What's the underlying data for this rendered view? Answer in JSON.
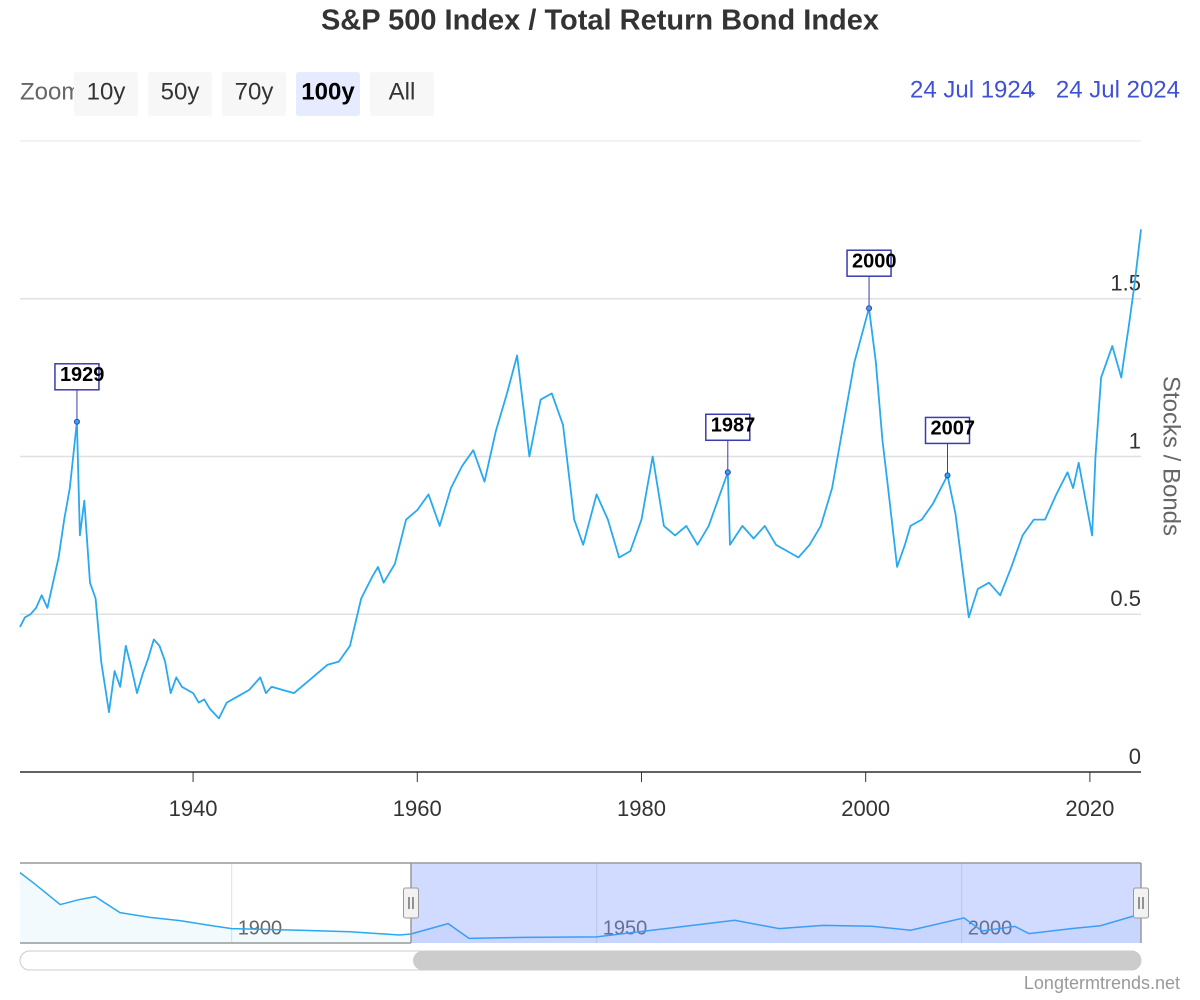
{
  "range_selector": {
    "label": "Zoom",
    "buttons": [
      "10y",
      "50y",
      "70y",
      "100y",
      "All"
    ],
    "selected": 3,
    "from": "24 Jul 1924",
    "separator": "→",
    "to": "24 Jul 2024"
  },
  "credit": "Longtermtrends.net",
  "chart_data": [
    {
      "type": "line",
      "title": "S&P 500 Index / Total Return Bond Index",
      "y_axis_title": "Stocks / Bonds",
      "color": "#29a9f0",
      "x": [
        1924.56,
        1925,
        1925.5,
        1926,
        1926.5,
        1927,
        1927.5,
        1928,
        1928.5,
        1929,
        1929.64,
        1929.9,
        1930.3,
        1930.8,
        1931.3,
        1931.8,
        1932.5,
        1933,
        1933.5,
        1934,
        1934.5,
        1935,
        1935.5,
        1936,
        1936.5,
        1937,
        1937.5,
        1938,
        1938.5,
        1939,
        1939.5,
        1940,
        1940.5,
        1941,
        1941.5,
        1942.3,
        1943,
        1944,
        1945,
        1946,
        1946.5,
        1947,
        1948,
        1949,
        1950,
        1951,
        1952,
        1953,
        1954,
        1955,
        1956,
        1956.5,
        1957,
        1958,
        1959,
        1960,
        1961,
        1962,
        1963,
        1964,
        1965,
        1966,
        1967,
        1968,
        1968.9,
        1970,
        1971,
        1972,
        1973,
        1974,
        1974.8,
        1976,
        1977,
        1978,
        1979,
        1980,
        1981,
        1982,
        1983,
        1984,
        1985,
        1986,
        1987.7,
        1987.9,
        1989,
        1990,
        1991,
        1992,
        1993,
        1994,
        1995,
        1996,
        1997,
        1998,
        1999,
        2000.3,
        2000.9,
        2001.5,
        2002,
        2002.8,
        2003.5,
        2004,
        2005,
        2006,
        2007.3,
        2008,
        2008.8,
        2009.2,
        2010,
        2011,
        2012,
        2013,
        2014,
        2015,
        2016,
        2017,
        2018,
        2018.5,
        2019,
        2020.2,
        2020.5,
        2021,
        2022,
        2022.8,
        2023,
        2023.5,
        2024,
        2024.56
      ],
      "values": [
        0.46,
        0.49,
        0.5,
        0.52,
        0.56,
        0.52,
        0.6,
        0.68,
        0.8,
        0.9,
        1.11,
        0.75,
        0.86,
        0.6,
        0.55,
        0.35,
        0.19,
        0.32,
        0.27,
        0.4,
        0.33,
        0.25,
        0.31,
        0.36,
        0.42,
        0.4,
        0.35,
        0.25,
        0.3,
        0.27,
        0.26,
        0.25,
        0.22,
        0.23,
        0.2,
        0.17,
        0.22,
        0.24,
        0.26,
        0.3,
        0.25,
        0.27,
        0.26,
        0.25,
        0.28,
        0.31,
        0.34,
        0.35,
        0.4,
        0.55,
        0.62,
        0.65,
        0.6,
        0.66,
        0.8,
        0.83,
        0.88,
        0.78,
        0.9,
        0.97,
        1.02,
        0.92,
        1.08,
        1.2,
        1.32,
        1.0,
        1.18,
        1.2,
        1.1,
        0.8,
        0.72,
        0.88,
        0.8,
        0.68,
        0.7,
        0.8,
        1.0,
        0.78,
        0.75,
        0.78,
        0.72,
        0.78,
        0.95,
        0.72,
        0.78,
        0.74,
        0.78,
        0.72,
        0.7,
        0.68,
        0.72,
        0.78,
        0.9,
        1.1,
        1.3,
        1.47,
        1.3,
        1.05,
        0.9,
        0.65,
        0.72,
        0.78,
        0.8,
        0.85,
        0.94,
        0.82,
        0.6,
        0.49,
        0.58,
        0.6,
        0.56,
        0.65,
        0.75,
        0.8,
        0.8,
        0.88,
        0.95,
        0.9,
        0.98,
        0.75,
        1.0,
        1.25,
        1.35,
        1.25,
        1.3,
        1.42,
        1.55,
        1.72
      ],
      "xlim": [
        1924.56,
        2024.56
      ],
      "xticks": [
        1940,
        1960,
        1980,
        2000,
        2020
      ],
      "ylim": [
        0,
        2
      ],
      "yticks": [
        0,
        0.5,
        1,
        1.5
      ],
      "grid": true,
      "flags": [
        {
          "title": "1929",
          "x": 1929.64,
          "y": 1.11
        },
        {
          "title": "1987",
          "x": 1987.7,
          "y": 0.95
        },
        {
          "title": "2000",
          "x": 2000.3,
          "y": 1.47
        },
        {
          "title": "2007",
          "x": 2007.3,
          "y": 0.94
        }
      ]
    },
    {
      "type": "area",
      "color": "#29a9f0",
      "x": [
        1871,
        1873,
        1876.5,
        1879,
        1881.3,
        1884.7,
        1888.8,
        1892.9,
        1897,
        1900,
        1909.4,
        1916.2,
        1923,
        1924.56,
        1929.64,
        1932.5,
        1940,
        1950,
        1960,
        1968.9,
        1975,
        1981,
        1987.7,
        1993,
        2000.3,
        2002.8,
        2007.3,
        2009.2,
        2015,
        2019,
        2024.56
      ],
      "values": [
        4.3,
        3.6,
        2.3,
        2.6,
        2.8,
        1.8,
        1.5,
        1.3,
        1.0,
        0.8,
        0.7,
        0.6,
        0.4,
        0.46,
        1.11,
        0.19,
        0.25,
        0.28,
        0.83,
        1.32,
        0.8,
        1.0,
        0.95,
        0.7,
        1.47,
        0.65,
        0.94,
        0.49,
        0.8,
        0.98,
        1.72
      ],
      "xlim": [
        1871,
        2024.56
      ],
      "xticks": [
        1900,
        1950,
        2000
      ],
      "ylim": [
        -0.1,
        4.9
      ]
    }
  ]
}
